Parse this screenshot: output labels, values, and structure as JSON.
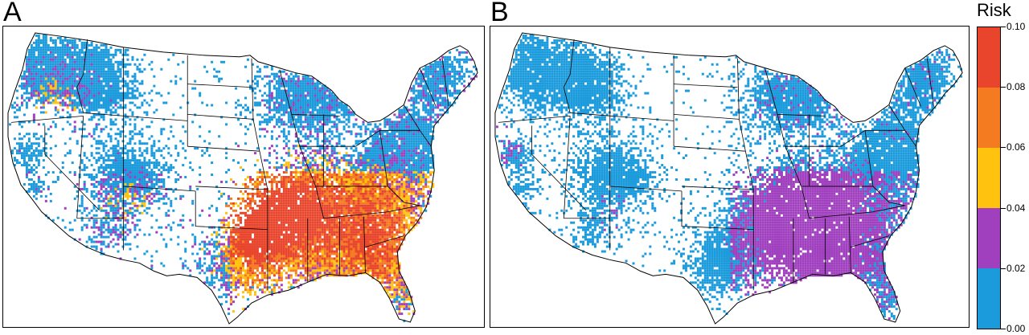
{
  "panels": [
    {
      "label": "A",
      "name": "panel-a"
    },
    {
      "label": "B",
      "name": "panel-b"
    }
  ],
  "legend": {
    "title": "Risk",
    "ticks": [
      "0.00",
      "0.02",
      "0.04",
      "0.06",
      "0.08",
      "0.10"
    ],
    "colors": [
      "#1b9bdc",
      "#a040bf",
      "#ffc20e",
      "#f47b20",
      "#e8452c"
    ]
  }
}
